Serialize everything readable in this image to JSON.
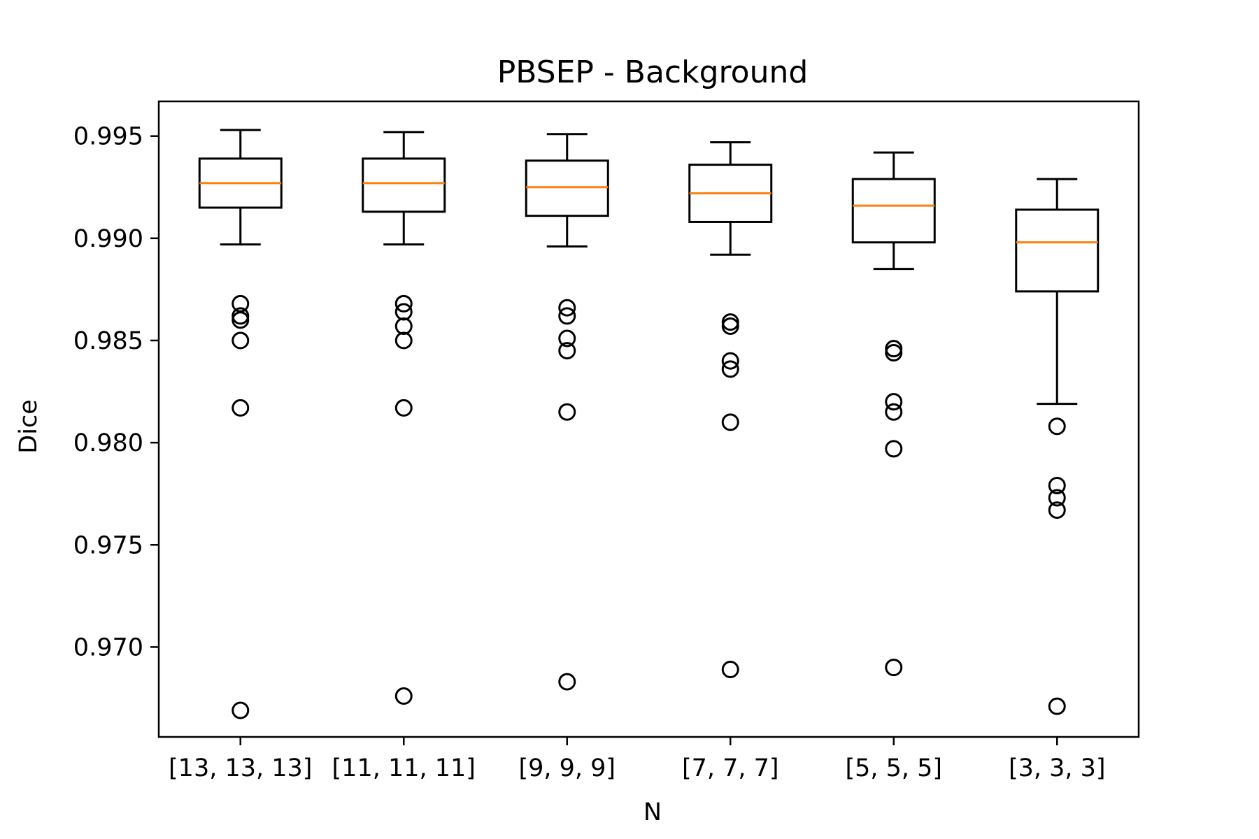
{
  "chart_data": {
    "type": "box",
    "title": "PBSEP - Background",
    "xlabel": "N",
    "ylabel": "Dice",
    "categories": [
      "[13, 13, 13]",
      "[11, 11, 11]",
      "[9, 9, 9]",
      "[7, 7, 7]",
      "[5, 5, 5]",
      "[3, 3, 3]"
    ],
    "ylim": [
      0.9656,
      0.9967
    ],
    "yticks": [
      "0.995",
      "0.990",
      "0.985",
      "0.980",
      "0.975",
      "0.970"
    ],
    "grid": false,
    "legend": "none",
    "box_color": "#000000",
    "median_color": "#ff7f0e",
    "boxes": [
      {
        "whisker_low": 0.9897,
        "q1": 0.9915,
        "median": 0.9927,
        "q3": 0.9939,
        "whisker_high": 0.9953,
        "outliers": [
          0.9868,
          0.9862,
          0.986,
          0.985,
          0.9817,
          0.9669
        ]
      },
      {
        "whisker_low": 0.9897,
        "q1": 0.9913,
        "median": 0.9927,
        "q3": 0.9939,
        "whisker_high": 0.9952,
        "outliers": [
          0.9868,
          0.9864,
          0.9857,
          0.985,
          0.9817,
          0.9676
        ]
      },
      {
        "whisker_low": 0.9896,
        "q1": 0.9911,
        "median": 0.9925,
        "q3": 0.9938,
        "whisker_high": 0.9951,
        "outliers": [
          0.9866,
          0.9862,
          0.9851,
          0.9845,
          0.9815,
          0.9683
        ]
      },
      {
        "whisker_low": 0.9892,
        "q1": 0.9908,
        "median": 0.9922,
        "q3": 0.9936,
        "whisker_high": 0.9947,
        "outliers": [
          0.9859,
          0.9857,
          0.984,
          0.9836,
          0.981,
          0.9689
        ]
      },
      {
        "whisker_low": 0.9885,
        "q1": 0.9898,
        "median": 0.9916,
        "q3": 0.9929,
        "whisker_high": 0.9942,
        "outliers": [
          0.9846,
          0.9844,
          0.982,
          0.9815,
          0.9797,
          0.969
        ]
      },
      {
        "whisker_low": 0.9819,
        "q1": 0.9874,
        "median": 0.9898,
        "q3": 0.9914,
        "whisker_high": 0.9929,
        "outliers": [
          0.9808,
          0.9779,
          0.9773,
          0.9767,
          0.9671
        ]
      }
    ]
  }
}
